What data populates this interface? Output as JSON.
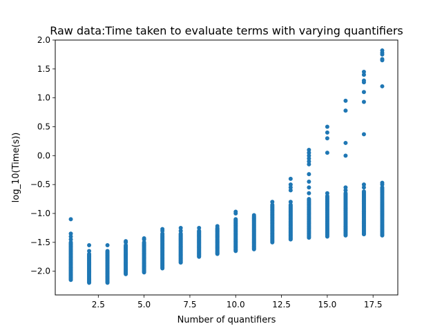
{
  "chart_data": {
    "type": "scatter",
    "title": "Raw data:Time taken to evaluate terms with varying quantifiers",
    "xlabel": "Number of quantifiers",
    "ylabel": "log_10(Time(s))",
    "xlim": [
      0.15,
      18.85
    ],
    "ylim": [
      -2.41,
      2.0
    ],
    "x_ticks": [
      2.5,
      5.0,
      7.5,
      10.0,
      12.5,
      15.0,
      17.5
    ],
    "x_tick_labels": [
      "2.5",
      "5.0",
      "7.5",
      "10.0",
      "12.5",
      "15.0",
      "17.5"
    ],
    "y_ticks": [
      -2.0,
      -1.5,
      -1.0,
      -0.5,
      0.0,
      0.5,
      1.0,
      1.5,
      2.0
    ],
    "y_tick_labels": [
      "−2.0",
      "−1.5",
      "−1.0",
      "−0.5",
      "0.0",
      "0.5",
      "1.0",
      "1.5",
      "2.0"
    ],
    "grid": false,
    "marker_color": "#1f77b4",
    "series": [
      {
        "groups": [
          {
            "x": 1,
            "dense_range": [
              -2.15,
              -1.5
            ],
            "outliers": [
              -1.35,
              -1.4,
              -1.45,
              -1.1
            ]
          },
          {
            "x": 2,
            "dense_range": [
              -2.2,
              -1.7
            ],
            "outliers": [
              -1.65,
              -1.55
            ]
          },
          {
            "x": 3,
            "dense_range": [
              -2.2,
              -1.65
            ],
            "outliers": [
              -1.55
            ]
          },
          {
            "x": 4,
            "dense_range": [
              -2.05,
              -1.55
            ],
            "outliers": [
              -1.5,
              -1.48
            ]
          },
          {
            "x": 5,
            "dense_range": [
              -2.02,
              -1.5
            ],
            "outliers": [
              -1.45,
              -1.43
            ]
          },
          {
            "x": 6,
            "dense_range": [
              -1.95,
              -1.35
            ],
            "outliers": [
              -1.3,
              -1.27
            ]
          },
          {
            "x": 7,
            "dense_range": [
              -1.85,
              -1.35
            ],
            "outliers": [
              -1.3,
              -1.25
            ]
          },
          {
            "x": 8,
            "dense_range": [
              -1.75,
              -1.3
            ],
            "outliers": [
              -1.25
            ]
          },
          {
            "x": 9,
            "dense_range": [
              -1.7,
              -1.25
            ],
            "outliers": [
              -1.22
            ]
          },
          {
            "x": 10,
            "dense_range": [
              -1.65,
              -1.1
            ],
            "outliers": [
              -1.0,
              -0.97
            ]
          },
          {
            "x": 11,
            "dense_range": [
              -1.62,
              -1.05
            ],
            "outliers": [
              -1.03
            ]
          },
          {
            "x": 12,
            "dense_range": [
              -1.5,
              -0.85
            ],
            "outliers": [
              -0.8
            ]
          },
          {
            "x": 13,
            "dense_range": [
              -1.45,
              -0.85
            ],
            "outliers": [
              -0.8,
              -0.6,
              -0.55,
              -0.5,
              -0.4
            ]
          },
          {
            "x": 14,
            "dense_range": [
              -1.42,
              -0.75
            ],
            "outliers": [
              -0.65,
              -0.55,
              -0.45,
              -0.32,
              -0.15,
              -0.1,
              -0.05,
              0.0,
              0.05,
              0.1
            ]
          },
          {
            "x": 15,
            "dense_range": [
              -1.4,
              -0.7
            ],
            "outliers": [
              -0.65,
              0.05,
              0.3,
              0.4,
              0.5
            ]
          },
          {
            "x": 16,
            "dense_range": [
              -1.38,
              -0.65
            ],
            "outliers": [
              -0.6,
              -0.55,
              0.0,
              0.22,
              0.78,
              0.95
            ]
          },
          {
            "x": 17,
            "dense_range": [
              -1.36,
              -0.62
            ],
            "outliers": [
              -0.55,
              -0.5,
              0.37,
              0.93,
              1.1,
              1.27,
              1.3,
              1.4,
              1.45
            ]
          },
          {
            "x": 18,
            "dense_range": [
              -1.38,
              -0.55
            ],
            "outliers": [
              -0.5,
              -0.47,
              1.2,
              1.65,
              1.67,
              1.75,
              1.78,
              1.82
            ]
          }
        ]
      }
    ]
  }
}
